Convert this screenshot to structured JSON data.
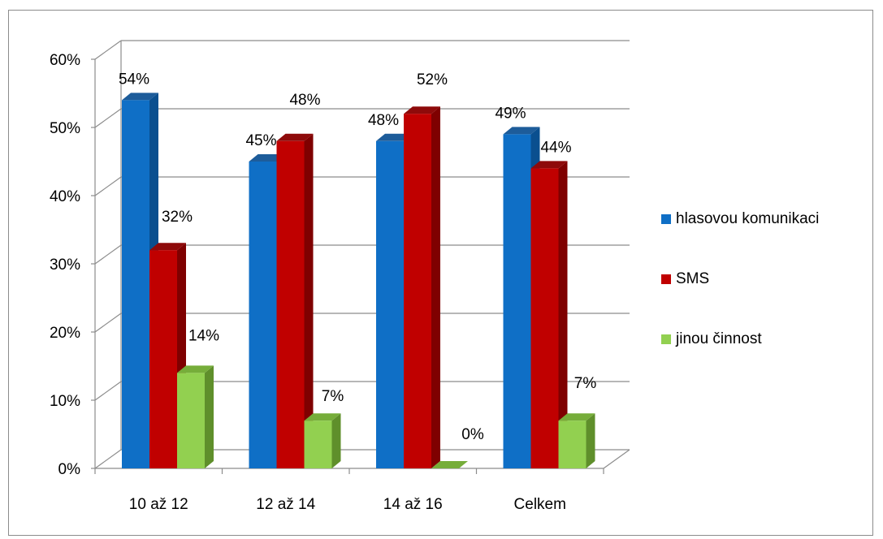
{
  "chart_data": {
    "type": "bar",
    "categories": [
      "10 až 12",
      "12 až 14",
      "14 až 16",
      "Celkem"
    ],
    "series": [
      {
        "name": "hlasovou komunikaci",
        "values": [
          54,
          45,
          48,
          49
        ],
        "labels": [
          "54%",
          "45%",
          "48%",
          "49%"
        ],
        "color": "#0f6fc6",
        "side": "#0a4f8f",
        "top": "#1d5c9a"
      },
      {
        "name": "SMS",
        "values": [
          32,
          48,
          52,
          44
        ],
        "labels": [
          "32%",
          "48%",
          "52%",
          "44%"
        ],
        "color": "#c00000",
        "side": "#7f0000",
        "top": "#8e0a0a"
      },
      {
        "name": "jinou činnost",
        "values": [
          14,
          7,
          0,
          7
        ],
        "labels": [
          "14%",
          "7%",
          "0%",
          "7%"
        ],
        "color": "#92d050",
        "side": "#5f8f2b",
        "top": "#76ad3a"
      }
    ],
    "yticks": [
      "0%",
      "10%",
      "20%",
      "30%",
      "40%",
      "50%",
      "60%"
    ],
    "ylim": [
      0,
      60
    ],
    "grid": true,
    "legend_position": "right"
  }
}
